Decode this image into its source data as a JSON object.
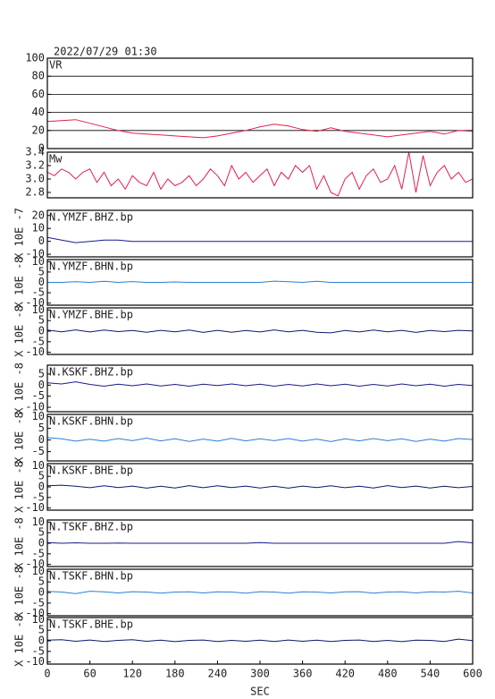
{
  "chart_data": [
    {
      "type": "line",
      "title": "2022/07/29 01:30",
      "grid": true,
      "xlim": [
        0,
        600
      ],
      "ylim": [
        0,
        100
      ],
      "yticks": [
        0,
        20,
        40,
        60,
        80,
        100
      ],
      "x": [
        0,
        20,
        40,
        60,
        80,
        100,
        120,
        140,
        160,
        180,
        200,
        220,
        240,
        260,
        280,
        300,
        320,
        340,
        360,
        380,
        400,
        420,
        440,
        460,
        480,
        500,
        520,
        540,
        560,
        580,
        600
      ],
      "series": [
        {
          "name": "VR",
          "color": "#e0204e",
          "values": [
            30,
            31,
            32,
            28,
            24,
            20,
            17,
            16,
            15,
            14,
            13,
            12,
            14,
            17,
            20,
            24,
            27,
            25,
            21,
            19,
            23,
            19,
            17,
            15,
            13,
            15,
            17,
            19,
            16,
            20,
            19
          ]
        }
      ]
    },
    {
      "type": "line",
      "grid": false,
      "xlim": [
        0,
        600
      ],
      "ylim": [
        2.72,
        3.4
      ],
      "yticks": [
        {
          "value": 2.8,
          "label": "2.8"
        },
        {
          "value": 3.0,
          "label": "3.0"
        },
        {
          "value": 3.2,
          "label": "3.2"
        },
        {
          "value": 3.4,
          "label": "3.4"
        }
      ],
      "x": [
        0,
        10,
        20,
        30,
        40,
        50,
        60,
        70,
        80,
        90,
        100,
        110,
        120,
        130,
        140,
        150,
        160,
        170,
        180,
        190,
        200,
        210,
        220,
        230,
        240,
        250,
        260,
        270,
        280,
        290,
        300,
        310,
        320,
        330,
        340,
        350,
        360,
        370,
        380,
        390,
        400,
        410,
        420,
        430,
        440,
        450,
        460,
        470,
        480,
        490,
        500,
        510,
        520,
        530,
        540,
        550,
        560,
        570,
        580,
        590,
        600
      ],
      "series": [
        {
          "name": "Mw",
          "color": "#e0204e",
          "values": [
            3.1,
            3.05,
            3.15,
            3.1,
            3.0,
            3.1,
            3.15,
            2.95,
            3.1,
            2.9,
            3.0,
            2.85,
            3.05,
            2.95,
            2.9,
            3.1,
            2.85,
            3.0,
            2.9,
            2.95,
            3.05,
            2.9,
            3.0,
            3.15,
            3.05,
            2.9,
            3.2,
            3.0,
            3.1,
            2.95,
            3.05,
            3.15,
            2.9,
            3.1,
            3.0,
            3.2,
            3.1,
            3.2,
            2.85,
            3.05,
            2.8,
            2.75,
            3.0,
            3.1,
            2.85,
            3.05,
            3.15,
            2.95,
            3.0,
            3.2,
            2.85,
            3.4,
            2.8,
            3.35,
            2.9,
            3.1,
            3.2,
            3.0,
            3.1,
            2.95,
            3.0
          ]
        }
      ]
    },
    {
      "type": "line",
      "grid": false,
      "y_label": "X 10E -7",
      "xlim": [
        0,
        600
      ],
      "ylim": [
        -12,
        24
      ],
      "yticks": [
        -10,
        0,
        10,
        20
      ],
      "x": [
        0,
        20,
        40,
        60,
        80,
        100,
        120,
        140,
        160,
        180,
        200,
        220,
        240,
        260,
        280,
        300,
        320,
        340,
        360,
        380,
        400,
        420,
        440,
        460,
        480,
        500,
        520,
        540,
        560,
        580,
        600
      ],
      "series": [
        {
          "name": "N.YMZF.BHZ.bp",
          "color": "#1a1a8c",
          "values": [
            3,
            1,
            -1,
            0,
            1,
            1,
            0,
            0,
            0,
            0,
            0,
            0,
            0,
            0,
            0,
            0,
            0,
            0,
            0,
            0,
            0,
            0,
            0,
            0,
            0,
            0,
            0,
            0,
            0,
            0,
            0
          ]
        }
      ]
    },
    {
      "type": "line",
      "grid": false,
      "y_label": "X 10E -8",
      "xlim": [
        0,
        600
      ],
      "ylim": [
        -11,
        11
      ],
      "yticks": [
        -10,
        -5,
        0,
        5,
        10
      ],
      "x": [
        0,
        20,
        40,
        60,
        80,
        100,
        120,
        140,
        160,
        180,
        200,
        220,
        240,
        260,
        280,
        300,
        320,
        340,
        360,
        380,
        400,
        420,
        440,
        460,
        480,
        500,
        520,
        540,
        560,
        580,
        600
      ],
      "series": [
        {
          "name": "N.YMZF.BHN.bp",
          "color": "#2a7fd4",
          "values": [
            0,
            0,
            0.3,
            0,
            0.5,
            0,
            0.4,
            0,
            0,
            0.2,
            0,
            0,
            0,
            0,
            0,
            0,
            0.6,
            0.3,
            0,
            0.5,
            0,
            0,
            0,
            0,
            0,
            0,
            0,
            0,
            0,
            0,
            0
          ]
        }
      ]
    },
    {
      "type": "line",
      "grid": false,
      "y_label": "X 10E -8",
      "xlim": [
        0,
        600
      ],
      "ylim": [
        -11,
        11
      ],
      "yticks": [
        -10,
        -5,
        0,
        5,
        10
      ],
      "x": [
        0,
        20,
        40,
        60,
        80,
        100,
        120,
        140,
        160,
        180,
        200,
        220,
        240,
        260,
        280,
        300,
        320,
        340,
        360,
        380,
        400,
        420,
        440,
        460,
        480,
        500,
        520,
        540,
        560,
        580,
        600
      ],
      "series": [
        {
          "name": "N.YMZF.BHE.bp",
          "color": "#0a1a6a",
          "values": [
            0.5,
            -0.3,
            0.6,
            -0.4,
            0.5,
            -0.2,
            0.3,
            -0.5,
            0.4,
            -0.3,
            0.5,
            -0.6,
            0.4,
            -0.5,
            0.3,
            -0.4,
            0.6,
            -0.3,
            0.4,
            -0.5,
            -0.8,
            0.3,
            -0.4,
            0.5,
            -0.3,
            0.4,
            -0.6,
            0.3,
            -0.2,
            0.4,
            0.1
          ]
        }
      ]
    },
    {
      "type": "line",
      "grid": false,
      "y_label": "X 10E -8",
      "xlim": [
        0,
        600
      ],
      "ylim": [
        -12,
        9
      ],
      "yticks": [
        -10,
        -5,
        0,
        5
      ],
      "x": [
        0,
        20,
        40,
        60,
        80,
        100,
        120,
        140,
        160,
        180,
        200,
        220,
        240,
        260,
        280,
        300,
        320,
        340,
        360,
        380,
        400,
        420,
        440,
        460,
        480,
        500,
        520,
        540,
        560,
        580,
        600
      ],
      "series": [
        {
          "name": "N.KSKF.BHZ.bp",
          "color": "#1a1a8c",
          "values": [
            1,
            0.5,
            1.5,
            0.3,
            -0.5,
            0.4,
            -0.3,
            0.5,
            -0.4,
            0.3,
            -0.5,
            0.4,
            -0.2,
            0.5,
            -0.3,
            0.4,
            -0.5,
            0.3,
            -0.4,
            0.5,
            -0.3,
            0.4,
            -0.5,
            0.3,
            -0.4,
            0.5,
            -0.3,
            0.4,
            -0.5,
            0.3,
            -0.2
          ]
        }
      ]
    },
    {
      "type": "line",
      "grid": false,
      "y_label": "X 10E -8",
      "xlim": [
        0,
        600
      ],
      "ylim": [
        -9,
        11
      ],
      "yticks": [
        -5,
        0,
        5,
        10
      ],
      "x": [
        0,
        20,
        40,
        60,
        80,
        100,
        120,
        140,
        160,
        180,
        200,
        220,
        240,
        260,
        280,
        300,
        320,
        340,
        360,
        380,
        400,
        420,
        440,
        460,
        480,
        500,
        520,
        540,
        560,
        580,
        600
      ],
      "series": [
        {
          "name": "N.KSKF.BHN.bp",
          "color": "#2a7fd4",
          "values": [
            1,
            0.5,
            -0.5,
            0.3,
            -0.5,
            0.6,
            -0.3,
            0.8,
            -0.4,
            0.5,
            -0.6,
            0.4,
            -0.5,
            0.7,
            -0.4,
            0.5,
            -0.3,
            0.6,
            -0.5,
            0.4,
            -0.7,
            0.5,
            -0.4,
            0.6,
            -0.3,
            0.5,
            -0.6,
            0.4,
            -0.5,
            0.6,
            0.2
          ]
        }
      ]
    },
    {
      "type": "line",
      "grid": false,
      "y_label": "X 10E -8",
      "xlim": [
        0,
        600
      ],
      "ylim": [
        -11,
        11
      ],
      "yticks": [
        -10,
        -5,
        0,
        5,
        10
      ],
      "x": [
        0,
        20,
        40,
        60,
        80,
        100,
        120,
        140,
        160,
        180,
        200,
        220,
        240,
        260,
        280,
        300,
        320,
        340,
        360,
        380,
        400,
        420,
        440,
        460,
        480,
        500,
        520,
        540,
        560,
        580,
        600
      ],
      "series": [
        {
          "name": "N.KSKF.BHE.bp",
          "color": "#0a1a6a",
          "values": [
            0.5,
            0.8,
            0.3,
            -0.4,
            0.5,
            -0.3,
            0.4,
            -0.6,
            0.3,
            -0.5,
            0.6,
            -0.4,
            0.5,
            -0.3,
            0.4,
            -0.5,
            0.3,
            -0.6,
            0.4,
            -0.3,
            0.5,
            -0.4,
            0.3,
            -0.5,
            0.6,
            -0.3,
            0.4,
            -0.5,
            0.3,
            -0.4,
            0.2
          ]
        }
      ]
    },
    {
      "type": "line",
      "grid": false,
      "y_label": "X 10E -8",
      "xlim": [
        0,
        600
      ],
      "ylim": [
        -11,
        11
      ],
      "yticks": [
        -10,
        -5,
        0,
        5,
        10
      ],
      "x": [
        0,
        20,
        40,
        60,
        80,
        100,
        120,
        140,
        160,
        180,
        200,
        220,
        240,
        260,
        280,
        300,
        320,
        340,
        360,
        380,
        400,
        420,
        440,
        460,
        480,
        500,
        520,
        540,
        560,
        580,
        600
      ],
      "series": [
        {
          "name": "N.TSKF.BHZ.bp",
          "color": "#1a1a8c",
          "values": [
            0.3,
            0,
            0.2,
            0,
            0,
            0.1,
            0,
            0,
            0,
            0,
            0,
            0,
            0,
            0,
            0,
            0.3,
            0,
            0,
            0,
            0,
            0,
            0,
            0,
            0,
            0,
            0,
            0,
            0,
            0,
            0.8,
            0.2
          ]
        }
      ]
    },
    {
      "type": "line",
      "grid": false,
      "y_label": "X 10E -8",
      "xlim": [
        0,
        600
      ],
      "ylim": [
        -11,
        11
      ],
      "yticks": [
        -10,
        -5,
        0,
        5,
        10
      ],
      "x": [
        0,
        20,
        40,
        60,
        80,
        100,
        120,
        140,
        160,
        180,
        200,
        220,
        240,
        260,
        280,
        300,
        320,
        340,
        360,
        380,
        400,
        420,
        440,
        460,
        480,
        500,
        520,
        540,
        560,
        580,
        600
      ],
      "series": [
        {
          "name": "N.TSKF.BHN.bp",
          "color": "#2a7fd4",
          "values": [
            0.5,
            0.2,
            -0.5,
            0.6,
            0.3,
            -0.2,
            0.4,
            0.2,
            -0.3,
            0.2,
            0.3,
            -0.2,
            0.3,
            0.2,
            -0.3,
            0.4,
            0.2,
            -0.3,
            0.3,
            0.2,
            -0.2,
            0.3,
            0.4,
            -0.3,
            0.2,
            0.3,
            -0.2,
            0.3,
            0.2,
            0.6,
            -0.2
          ]
        }
      ]
    },
    {
      "type": "line",
      "grid": false,
      "y_label": "X 10E -8",
      "x_label": "SEC",
      "xlim": [
        0,
        600
      ],
      "xticks": [
        0,
        60,
        120,
        180,
        240,
        300,
        360,
        420,
        480,
        540,
        600
      ],
      "ylim": [
        -11,
        11
      ],
      "yticks": [
        -10,
        -5,
        0,
        5,
        10
      ],
      "x": [
        0,
        20,
        40,
        60,
        80,
        100,
        120,
        140,
        160,
        180,
        200,
        220,
        240,
        260,
        280,
        300,
        320,
        340,
        360,
        380,
        400,
        420,
        440,
        460,
        480,
        500,
        520,
        540,
        560,
        580,
        600
      ],
      "series": [
        {
          "name": "N.TSKF.BHE.bp",
          "color": "#0a1a6a",
          "values": [
            0.3,
            0.5,
            -0.2,
            0.4,
            -0.3,
            0.2,
            0.5,
            -0.2,
            0.3,
            -0.4,
            0.2,
            0.4,
            -0.3,
            0.2,
            -0.2,
            0.3,
            -0.3,
            0.4,
            -0.2,
            0.3,
            -0.3,
            0.2,
            0.4,
            -0.3,
            0.2,
            -0.4,
            0.3,
            0.2,
            -0.3,
            0.8,
            0.1
          ]
        }
      ]
    }
  ]
}
